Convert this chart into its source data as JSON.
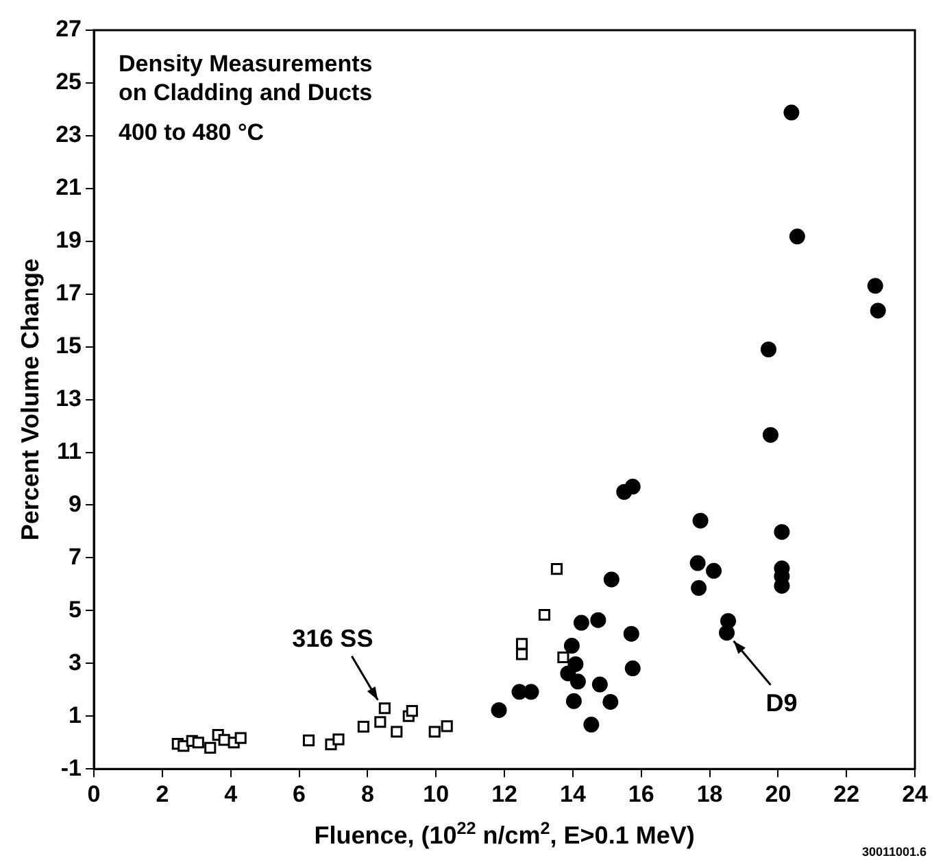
{
  "chart_data": {
    "type": "scatter",
    "title": "Density Measurements on Cladding and Ducts",
    "subtitle": "400 to 480 °C",
    "xlabel": "Fluence, (10$^{22}$ n/cm$^{2}$, E>0.1 MeV)",
    "ylabel": "Percent Volume Change",
    "xlim": [
      0,
      24
    ],
    "xticks": [
      0,
      2,
      4,
      6,
      8,
      10,
      12,
      14,
      16,
      18,
      20,
      22,
      24
    ],
    "ylim": [
      -1,
      27
    ],
    "yticks": [
      -1,
      1,
      3,
      5,
      7,
      9,
      11,
      13,
      15,
      17,
      19,
      21,
      23,
      25,
      27
    ],
    "grid": false,
    "legend": false,
    "series": [
      {
        "color": "#000000",
        "marker": "square",
        "x": [
          2.45,
          2.62,
          2.87,
          3.05,
          3.4,
          3.63,
          3.81,
          4.09,
          4.29,
          6.28,
          6.93,
          7.15,
          7.88,
          8.37,
          8.5,
          8.85,
          9.2,
          9.3,
          9.96,
          10.32,
          12.51,
          12.51,
          13.17,
          13.53,
          13.72
        ],
        "values": [
          -0.05,
          -0.13,
          0.06,
          0,
          -0.2,
          0.29,
          0.1,
          0,
          0.17,
          0.08,
          -0.07,
          0.12,
          0.6,
          0.78,
          1.3,
          0.41,
          1.0,
          1.2,
          0.41,
          0.62,
          3.35,
          3.74,
          4.84,
          6.58,
          3.23
        ]
      },
      {
        "color": "#000000",
        "marker": "circle",
        "x": [
          11.84,
          12.44,
          12.78,
          13.86,
          13.97,
          14.03,
          14.08,
          14.15,
          14.25,
          14.54,
          14.74,
          14.79,
          15.1,
          15.13,
          15.5,
          15.71,
          15.75,
          15.75,
          17.65,
          17.68,
          17.73,
          18.12,
          18.5,
          18.54,
          19.72,
          19.78,
          20.11,
          20.11,
          20.11,
          20.11,
          20.39,
          20.56,
          22.84,
          22.92
        ],
        "values": [
          1.23,
          1.92,
          1.92,
          2.62,
          3.67,
          1.57,
          2.97,
          2.31,
          4.54,
          0.68,
          4.64,
          2.2,
          1.54,
          6.18,
          9.5,
          4.12,
          2.81,
          9.7,
          6.8,
          5.86,
          8.41,
          6.51,
          4.16,
          4.61,
          14.9,
          11.66,
          7.98,
          6.6,
          6.3,
          5.94,
          23.88,
          19.18,
          17.31,
          16.37
        ]
      }
    ],
    "annotations": [
      {
        "text": "316 SS",
        "x": 8.5,
        "y": 1.3
      },
      {
        "text": "D9",
        "x": 18.5,
        "y": 4.16
      },
      "30011001.6"
    ]
  }
}
